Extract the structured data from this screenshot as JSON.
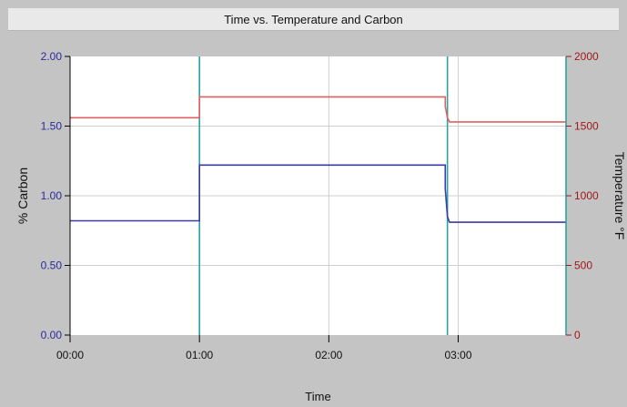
{
  "chart_data": {
    "type": "line",
    "title": "Time vs. Temperature and Carbon",
    "xlabel": "Time",
    "ylabel_left": "% Carbon",
    "ylabel_right": "Temperature °F",
    "x_ticks": [
      "00:00",
      "01:00",
      "02:00",
      "03:00"
    ],
    "y_left_ticks": [
      "0.00",
      "0.50",
      "1.00",
      "1.50",
      "2.00"
    ],
    "y_right_ticks": [
      "0",
      "500",
      "1000",
      "1500",
      "2000"
    ],
    "xlim_minutes": [
      0,
      230
    ],
    "ylim_left": [
      0,
      2.0
    ],
    "ylim_right": [
      0,
      2000
    ],
    "grid": true,
    "colors": {
      "temperature": "#e06060",
      "carbon": "#3a3aa8",
      "left_axis": "#2a2aa0",
      "right_axis": "#a01818",
      "markers": "#2aa3a3"
    },
    "vertical_markers_minutes": [
      60,
      175
    ],
    "series": [
      {
        "axis": "right",
        "color": "#e06060",
        "points": [
          [
            0,
            1560
          ],
          [
            60,
            1560
          ],
          [
            60,
            1710
          ],
          [
            174,
            1710
          ],
          [
            174,
            1640
          ],
          [
            175,
            1560
          ],
          [
            176,
            1530
          ],
          [
            230,
            1530
          ]
        ]
      },
      {
        "axis": "left",
        "color": "#3a3aa8",
        "points": [
          [
            0,
            0.82
          ],
          [
            60,
            0.82
          ],
          [
            60,
            1.22
          ],
          [
            174,
            1.22
          ],
          [
            174,
            1.05
          ],
          [
            175,
            0.85
          ],
          [
            176,
            0.81
          ],
          [
            230,
            0.81
          ]
        ]
      }
    ]
  }
}
